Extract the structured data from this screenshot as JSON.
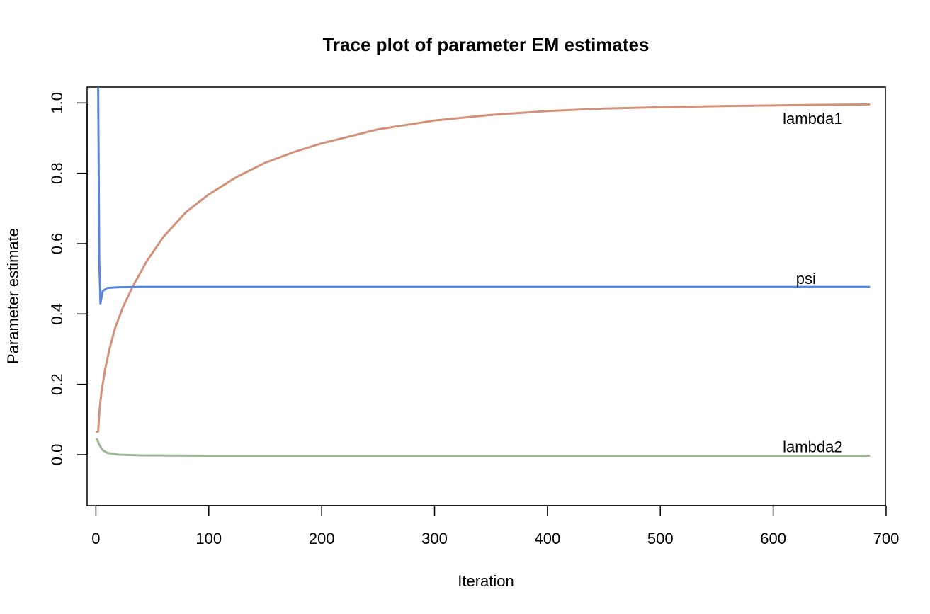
{
  "chart_data": {
    "type": "line",
    "title": "Trace plot of parameter EM estimates",
    "xlabel": "Iteration",
    "ylabel": "Parameter estimate",
    "xlim": [
      -7.8,
      699.4
    ],
    "ylim": [
      -0.145,
      1.045
    ],
    "xticks": [
      0,
      100,
      200,
      300,
      400,
      500,
      600,
      700
    ],
    "yticks": [
      0.0,
      0.2,
      0.4,
      0.6,
      0.8,
      1.0
    ],
    "xtick_labels": [
      "0",
      "100",
      "200",
      "300",
      "400",
      "500",
      "600",
      "700"
    ],
    "ytick_labels": [
      "0.0",
      "0.2",
      "0.4",
      "0.6",
      "0.8",
      "1.0"
    ],
    "grid": false,
    "legend": "none",
    "series": [
      {
        "name": "lambda1",
        "color": "#D3917A",
        "label_at": [
          635,
          0.955
        ],
        "points": [
          [
            1,
            0.065
          ],
          [
            2,
            0.066
          ],
          [
            3,
            0.12
          ],
          [
            5,
            0.18
          ],
          [
            8,
            0.24
          ],
          [
            12,
            0.3
          ],
          [
            17,
            0.36
          ],
          [
            24,
            0.42
          ],
          [
            33,
            0.48
          ],
          [
            45,
            0.55
          ],
          [
            60,
            0.62
          ],
          [
            80,
            0.69
          ],
          [
            100,
            0.74
          ],
          [
            125,
            0.79
          ],
          [
            150,
            0.83
          ],
          [
            175,
            0.86
          ],
          [
            200,
            0.885
          ],
          [
            250,
            0.925
          ],
          [
            300,
            0.95
          ],
          [
            350,
            0.966
          ],
          [
            400,
            0.977
          ],
          [
            450,
            0.984
          ],
          [
            500,
            0.988
          ],
          [
            550,
            0.991
          ],
          [
            600,
            0.993
          ],
          [
            650,
            0.995
          ],
          [
            685,
            0.996
          ]
        ]
      },
      {
        "name": "psi",
        "color": "#5B87DB",
        "label_at": [
          629,
          0.5
        ],
        "points": [
          [
            2,
            1.045
          ],
          [
            2.5,
            0.8
          ],
          [
            3,
            0.55
          ],
          [
            4,
            0.43
          ],
          [
            6,
            0.465
          ],
          [
            10,
            0.474
          ],
          [
            20,
            0.476
          ],
          [
            40,
            0.477
          ],
          [
            100,
            0.477
          ],
          [
            300,
            0.477
          ],
          [
            685,
            0.477
          ]
        ]
      },
      {
        "name": "lambda2",
        "color": "#9AB893",
        "label_at": [
          635,
          0.022
        ],
        "points": [
          [
            1,
            0.044
          ],
          [
            3,
            0.028
          ],
          [
            6,
            0.013
          ],
          [
            10,
            0.005
          ],
          [
            20,
            0.0
          ],
          [
            40,
            -0.002
          ],
          [
            100,
            -0.003
          ],
          [
            300,
            -0.003
          ],
          [
            685,
            -0.003
          ]
        ]
      }
    ]
  }
}
